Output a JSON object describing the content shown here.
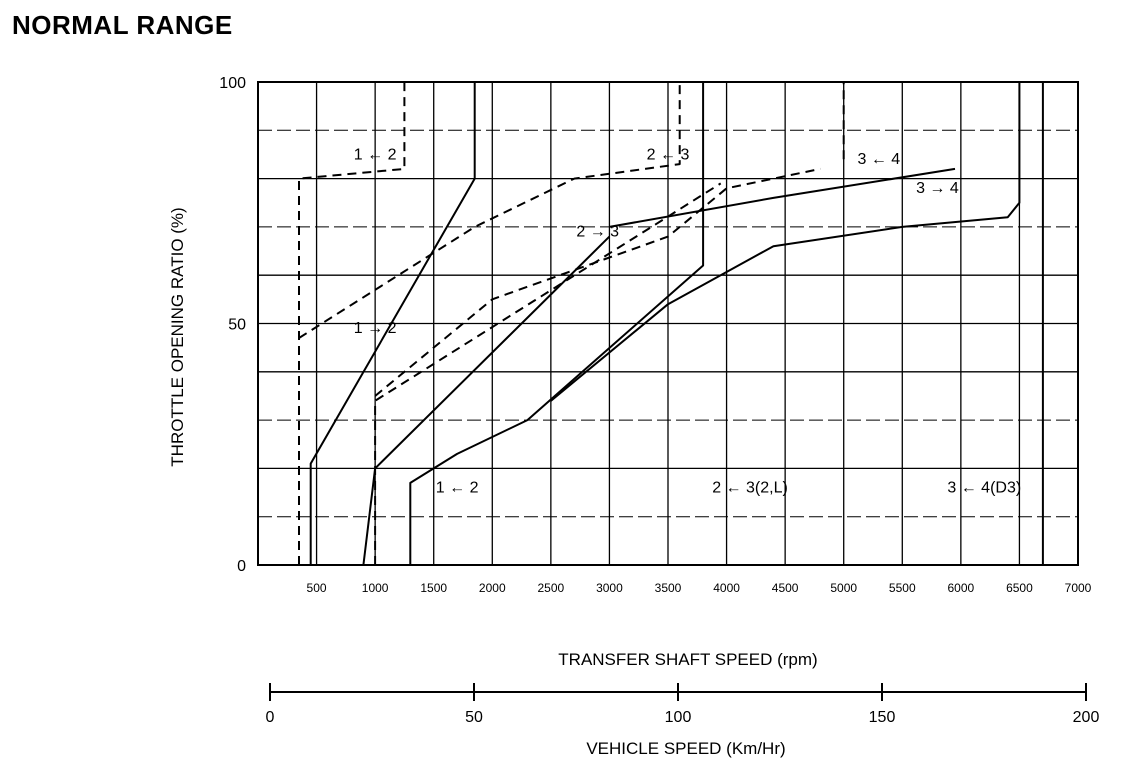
{
  "page": {
    "title": "NORMAL RANGE"
  },
  "chart_data": {
    "type": "line",
    "xlabel": "TRANSFER SHAFT SPEED (rpm)",
    "ylabel": "THROTTLE OPENING RATIO (%)",
    "xlim": [
      0,
      7000
    ],
    "ylim": [
      0,
      100
    ],
    "x_ticks": [
      500,
      1000,
      1500,
      2000,
      2500,
      3000,
      3500,
      4000,
      4500,
      5000,
      5500,
      6000,
      6500,
      7000
    ],
    "y_ticks": [
      0,
      50,
      100
    ],
    "y_tick_labels": [
      "0",
      "50",
      "100"
    ],
    "grid": true,
    "secondary_axis": {
      "label": "VEHICLE SPEED (Km/Hr)",
      "range": [
        0,
        200
      ],
      "ticks": [
        0,
        50,
        100,
        150,
        200
      ]
    },
    "series": [
      {
        "style": "solid",
        "x": [
          450,
          450,
          1850,
          1850
        ],
        "y": [
          0,
          21,
          80,
          100
        ]
      },
      {
        "style": "dashed",
        "x": [
          350,
          350,
          1250,
          1250
        ],
        "y": [
          0,
          80,
          82,
          100
        ]
      },
      {
        "style": "dashed",
        "x": [
          350,
          1850,
          2700,
          3600,
          3600
        ],
        "y": [
          47,
          70,
          80,
          83,
          100
        ]
      },
      {
        "style": "solid",
        "x": [
          900,
          1000,
          3000
        ],
        "y": [
          0,
          20,
          68
        ]
      },
      {
        "style": "solid",
        "x": [
          1300,
          1300,
          1700,
          2300,
          3800,
          3800
        ],
        "y": [
          0,
          17,
          23,
          30,
          62,
          100
        ]
      },
      {
        "style": "dashed",
        "x": [
          1000,
          1000,
          3950
        ],
        "y": [
          0,
          34,
          79
        ]
      },
      {
        "style": "solid",
        "x": [
          3000,
          4400,
          5950
        ],
        "y": [
          70,
          76,
          82
        ]
      },
      {
        "style": "dashed",
        "x": [
          1000,
          2000,
          3500,
          4000,
          4800
        ],
        "y": [
          35,
          55,
          68,
          78,
          82
        ]
      },
      {
        "style": "solid",
        "x": [
          2500,
          3500,
          4400,
          5500,
          6400,
          6500,
          6500
        ],
        "y": [
          34,
          54,
          66,
          70,
          72,
          75,
          100
        ]
      },
      {
        "style": "dashed",
        "x": [
          5000,
          5000
        ],
        "y": [
          84,
          100
        ]
      },
      {
        "style": "solid",
        "x": [
          6700,
          6700
        ],
        "y": [
          0,
          100
        ]
      }
    ],
    "annotations": [
      {
        "text": "1 ← 2",
        "x": 1000,
        "y": 84
      },
      {
        "text": "2 ← 3",
        "x": 3500,
        "y": 84
      },
      {
        "text": "3 ← 4",
        "x": 5300,
        "y": 83
      },
      {
        "text": "3 → 4",
        "x": 5800,
        "y": 77
      },
      {
        "text": "2 → 3",
        "x": 2900,
        "y": 68
      },
      {
        "text": "1 → 2",
        "x": 1000,
        "y": 48
      },
      {
        "text": "1 ← 2",
        "x": 1700,
        "y": 15
      },
      {
        "text": "2 ← 3(2,L)",
        "x": 4200,
        "y": 15
      },
      {
        "text": "3 ← 4(D3)",
        "x": 6200,
        "y": 15
      }
    ]
  }
}
